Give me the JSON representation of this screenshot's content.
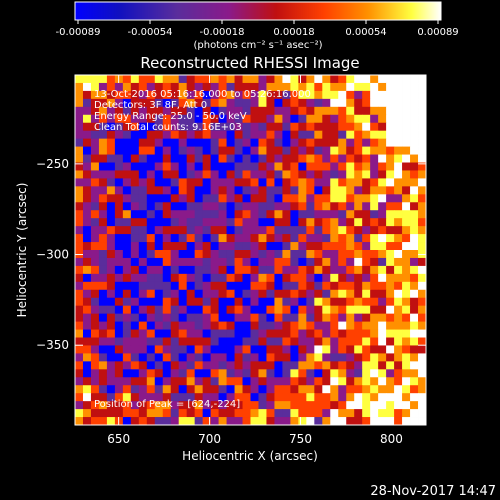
{
  "colorbar": {
    "ticks": [
      "-0.00089",
      "-0.00054",
      "-0.00018",
      "0.00018",
      "0.00054",
      "0.00089"
    ],
    "unit_label": "(photons cm⁻² s⁻¹ asec⁻²)"
  },
  "chart_data": {
    "type": "heatmap",
    "title": "Reconstructed RHESSI Image",
    "xlabel": "Heliocentric X (arcsec)",
    "ylabel": "Heliocentric Y (arcsec)",
    "xlim": [
      626,
      819
    ],
    "ylim": [
      -394,
      -201
    ],
    "xticks": [
      650,
      700,
      750,
      800
    ],
    "yticks": [
      -250,
      -300,
      -350
    ],
    "xtick_labels": [
      "650",
      "700",
      "750",
      "800"
    ],
    "ytick_labels": [
      "−250",
      "−300",
      "−350"
    ],
    "color_range": [
      -0.00089,
      0.00089
    ],
    "colormap": [
      "#0000ff",
      "#5a2d9c",
      "#8a1a8a",
      "#c01010",
      "#ff4000",
      "#ff9000",
      "#ffff40",
      "#ffffff"
    ],
    "annotations": [
      "13-Oct-2016 05:16:16.000 to 05:26:16.000",
      "Detectors: 3F 8F, Att 0",
      "Energy Range: 25.0 - 50.0 keV",
      "Clean    Total counts: 9.16E+03",
      "Position of Peak = [624,-224]"
    ],
    "peak": {
      "x": 624,
      "y": -224
    }
  },
  "footer": {
    "timestamp": "28-Nov-2017 14:47"
  }
}
